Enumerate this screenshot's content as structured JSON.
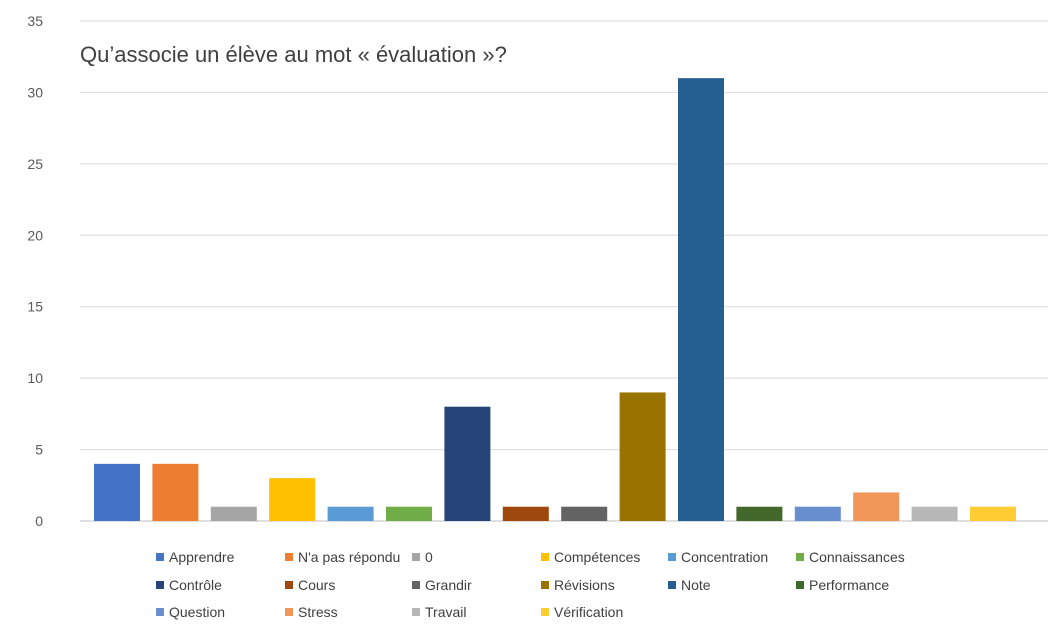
{
  "chart_data": {
    "type": "bar",
    "title": "Qu’associe un élève au mot « évaluation »?",
    "xlabel": "",
    "ylabel": "",
    "ylim": [
      0,
      35
    ],
    "yticks": [
      0,
      5,
      10,
      15,
      20,
      25,
      30,
      35
    ],
    "grid": true,
    "legend_position": "bottom",
    "series": [
      {
        "name": "Apprendre",
        "value": 4,
        "color": "#4472C4"
      },
      {
        "name": "N'a pas répondu",
        "value": 4,
        "color": "#ED7D31"
      },
      {
        "name": "0",
        "value": 1,
        "color": "#A5A5A5"
      },
      {
        "name": "Compétences",
        "value": 3,
        "color": "#FFC000"
      },
      {
        "name": "Concentration",
        "value": 1,
        "color": "#5B9BD5"
      },
      {
        "name": "Connaissances",
        "value": 1,
        "color": "#70AD47"
      },
      {
        "name": "Contrôle",
        "value": 8,
        "color": "#264478"
      },
      {
        "name": "Cours",
        "value": 1,
        "color": "#9E480E"
      },
      {
        "name": "Grandir",
        "value": 1,
        "color": "#636363"
      },
      {
        "name": "Révisions",
        "value": 9,
        "color": "#997300"
      },
      {
        "name": "Note",
        "value": 31,
        "color": "#255E91"
      },
      {
        "name": "Performance",
        "value": 1,
        "color": "#43682B"
      },
      {
        "name": "Question",
        "value": 1,
        "color": "#698ED0"
      },
      {
        "name": "Stress",
        "value": 2,
        "color": "#F1975A"
      },
      {
        "name": "Travail",
        "value": 1,
        "color": "#B7B7B7"
      },
      {
        "name": "Vérification",
        "value": 1,
        "color": "#FFCD33"
      }
    ]
  }
}
